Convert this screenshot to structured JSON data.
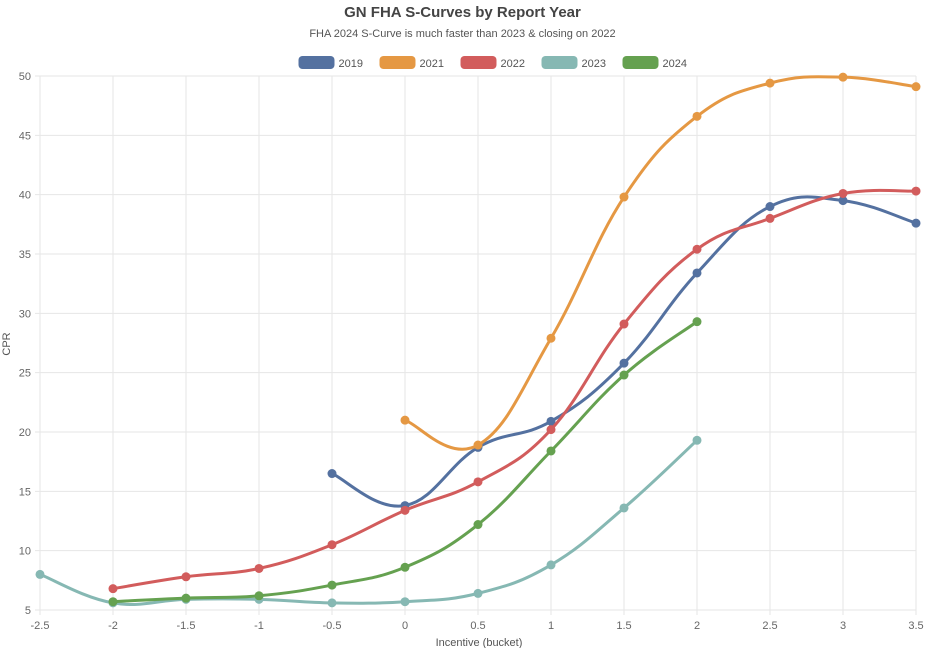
{
  "chart_data": {
    "type": "line",
    "title": "GN FHA S-Curves by Report Year",
    "subtitle": "FHA 2024 S-Curve is much faster than 2023 & closing on 2022",
    "xlabel": "Incentive (bucket)",
    "ylabel": "CPR",
    "xlim": [
      -2.5,
      3.5
    ],
    "ylim": [
      5,
      50
    ],
    "x_ticks": [
      "-2.5",
      "-2",
      "-1.5",
      "-1",
      "-0.5",
      "0",
      "0.5",
      "1",
      "1.5",
      "2",
      "2.5",
      "3",
      "3.5"
    ],
    "y_ticks": [
      "5",
      "10",
      "15",
      "20",
      "25",
      "30",
      "35",
      "40",
      "45",
      "50"
    ],
    "grid": true,
    "legend_position": "top",
    "series": [
      {
        "name": "2019",
        "color": "#5471A0",
        "points": [
          [
            -0.5,
            16.5
          ],
          [
            0,
            13.8
          ],
          [
            0.5,
            18.7
          ],
          [
            1,
            20.9
          ],
          [
            1.5,
            25.8
          ],
          [
            2,
            33.4
          ],
          [
            2.5,
            39.0
          ],
          [
            3,
            39.5
          ],
          [
            3.5,
            37.6
          ]
        ]
      },
      {
        "name": "2021",
        "color": "#E59843",
        "points": [
          [
            0,
            21.0
          ],
          [
            0.5,
            18.9
          ],
          [
            1,
            27.9
          ],
          [
            1.5,
            39.8
          ],
          [
            2,
            46.6
          ],
          [
            2.5,
            49.4
          ],
          [
            3,
            49.9
          ],
          [
            3.5,
            49.1
          ]
        ]
      },
      {
        "name": "2022",
        "color": "#D25C5C",
        "points": [
          [
            -2,
            6.8
          ],
          [
            -1.5,
            7.8
          ],
          [
            -1,
            8.5
          ],
          [
            -0.5,
            10.5
          ],
          [
            0,
            13.4
          ],
          [
            0.5,
            15.8
          ],
          [
            1,
            20.2
          ],
          [
            1.5,
            29.1
          ],
          [
            2,
            35.4
          ],
          [
            2.5,
            38.0
          ],
          [
            3,
            40.1
          ],
          [
            3.5,
            40.3
          ]
        ]
      },
      {
        "name": "2023",
        "color": "#86B8B3",
        "points": [
          [
            -2.5,
            8.0
          ],
          [
            -2,
            5.6
          ],
          [
            -1.5,
            5.9
          ],
          [
            -1,
            5.9
          ],
          [
            -0.5,
            5.6
          ],
          [
            0,
            5.7
          ],
          [
            0.5,
            6.4
          ],
          [
            1,
            8.8
          ],
          [
            1.5,
            13.6
          ],
          [
            2,
            19.3
          ]
        ]
      },
      {
        "name": "2024",
        "color": "#65A150",
        "points": [
          [
            -2,
            5.7
          ],
          [
            -1.5,
            6.0
          ],
          [
            -1,
            6.2
          ],
          [
            -0.5,
            7.1
          ],
          [
            0,
            8.6
          ],
          [
            0.5,
            12.2
          ],
          [
            1,
            18.4
          ],
          [
            1.5,
            24.8
          ],
          [
            2,
            29.3
          ]
        ]
      }
    ]
  }
}
